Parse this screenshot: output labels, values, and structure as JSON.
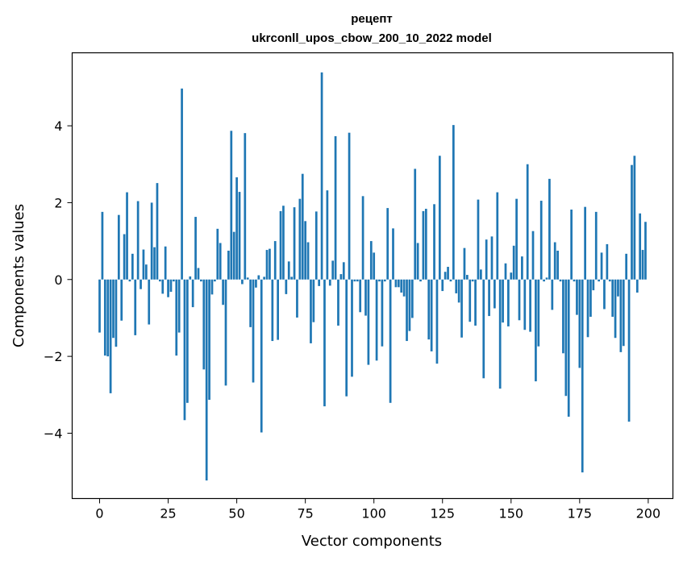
{
  "chart_data": {
    "type": "bar",
    "title": "рецепт",
    "subtitle": "ukrconll_upos_cbow_200_10_2022 model",
    "xlabel": "Vector components",
    "ylabel": "Components values",
    "xlim": [
      -10,
      209
    ],
    "ylim": [
      -5.7,
      5.9
    ],
    "xticks": [
      0,
      25,
      50,
      75,
      100,
      125,
      150,
      175,
      200
    ],
    "xtick_labels": [
      "0",
      "25",
      "50",
      "75",
      "100",
      "125",
      "150",
      "175",
      "200"
    ],
    "yticks": [
      -4,
      -2,
      0,
      2,
      4
    ],
    "ytick_labels": [
      "−4",
      "−2",
      "0",
      "2",
      "4"
    ],
    "grid": false,
    "bar_color": "#1f77b4",
    "x": [
      0,
      1,
      2,
      3,
      4,
      5,
      6,
      7,
      8,
      9,
      10,
      11,
      12,
      13,
      14,
      15,
      16,
      17,
      18,
      19,
      20,
      21,
      22,
      23,
      24,
      25,
      26,
      27,
      28,
      29,
      30,
      31,
      32,
      33,
      34,
      35,
      36,
      37,
      38,
      39,
      40,
      41,
      42,
      43,
      44,
      45,
      46,
      47,
      48,
      49,
      50,
      51,
      52,
      53,
      54,
      55,
      56,
      57,
      58,
      59,
      60,
      61,
      62,
      63,
      64,
      65,
      66,
      67,
      68,
      69,
      70,
      71,
      72,
      73,
      74,
      75,
      76,
      77,
      78,
      79,
      80,
      81,
      82,
      83,
      84,
      85,
      86,
      87,
      88,
      89,
      90,
      91,
      92,
      93,
      94,
      95,
      96,
      97,
      98,
      99,
      100,
      101,
      102,
      103,
      104,
      105,
      106,
      107,
      108,
      109,
      110,
      111,
      112,
      113,
      114,
      115,
      116,
      117,
      118,
      119,
      120,
      121,
      122,
      123,
      124,
      125,
      126,
      127,
      128,
      129,
      130,
      131,
      132,
      133,
      134,
      135,
      136,
      137,
      138,
      139,
      140,
      141,
      142,
      143,
      144,
      145,
      146,
      147,
      148,
      149,
      150,
      151,
      152,
      153,
      154,
      155,
      156,
      157,
      158,
      159,
      160,
      161,
      162,
      163,
      164,
      165,
      166,
      167,
      168,
      169,
      170,
      171,
      172,
      173,
      174,
      175,
      176,
      177,
      178,
      179,
      180,
      181,
      182,
      183,
      184,
      185,
      186,
      187,
      188,
      189,
      190,
      191,
      192,
      193,
      194,
      195,
      196,
      197,
      198,
      199
    ],
    "values": [
      -1.38,
      1.76,
      -1.98,
      -2.0,
      -2.96,
      -1.52,
      -1.75,
      1.68,
      -1.07,
      1.18,
      2.27,
      -0.05,
      0.67,
      -1.45,
      2.04,
      -0.25,
      0.78,
      0.39,
      -1.17,
      2.0,
      0.84,
      2.51,
      -0.05,
      -0.37,
      0.86,
      -0.46,
      -0.32,
      -0.05,
      -1.98,
      -1.38,
      4.97,
      -3.66,
      -3.21,
      0.08,
      -0.72,
      1.63,
      0.3,
      -0.05,
      -2.34,
      -5.23,
      -3.13,
      -0.39,
      -0.05,
      1.32,
      0.95,
      -0.66,
      -2.76,
      0.75,
      3.87,
      1.24,
      2.66,
      2.28,
      -0.12,
      3.81,
      0.05,
      -1.24,
      -2.68,
      -0.21,
      0.11,
      -3.98,
      0.07,
      0.77,
      0.8,
      -1.6,
      1.0,
      -1.57,
      1.78,
      1.92,
      -0.38,
      0.47,
      0.07,
      1.88,
      -0.99,
      2.1,
      2.75,
      1.52,
      0.97,
      -1.66,
      -1.11,
      1.77,
      -0.17,
      5.39,
      -3.3,
      2.32,
      -0.16,
      0.49,
      3.73,
      -1.2,
      0.14,
      0.45,
      -3.04,
      3.82,
      -2.53,
      -0.05,
      -0.05,
      -0.85,
      2.17,
      -0.94,
      -2.22,
      1.0,
      0.7,
      -2.11,
      -0.05,
      -1.74,
      -0.05,
      1.86,
      -3.21,
      1.33,
      -0.2,
      -0.2,
      -0.34,
      -0.44,
      -1.6,
      -1.34,
      -1.0,
      2.88,
      0.95,
      -0.05,
      1.78,
      1.84,
      -1.56,
      -1.87,
      1.96,
      -2.19,
      3.22,
      -0.3,
      0.2,
      0.33,
      -0.05,
      4.02,
      -0.36,
      -0.6,
      -1.51,
      0.82,
      0.12,
      -1.1,
      -0.05,
      -1.2,
      2.08,
      0.26,
      -2.57,
      1.04,
      -0.95,
      1.12,
      -0.75,
      2.27,
      -2.84,
      -1.12,
      0.42,
      -1.22,
      0.18,
      0.88,
      2.1,
      -1.06,
      0.6,
      -1.31,
      3.0,
      -1.36,
      1.26,
      -2.65,
      -1.74,
      2.05,
      -0.05,
      0.05,
      2.62,
      -0.79,
      0.97,
      0.75,
      -0.05,
      -1.92,
      -3.03,
      -3.57,
      1.82,
      -0.05,
      -0.92,
      -2.3,
      -5.02,
      1.89,
      -1.5,
      -0.97,
      -0.28,
      1.76,
      -0.05,
      0.7,
      -0.77,
      0.92,
      -0.05,
      -0.97,
      -1.52,
      -0.44,
      -1.89,
      -1.73,
      0.67,
      -3.7,
      2.98,
      3.22,
      -0.34,
      1.72,
      0.77,
      1.5
    ]
  }
}
